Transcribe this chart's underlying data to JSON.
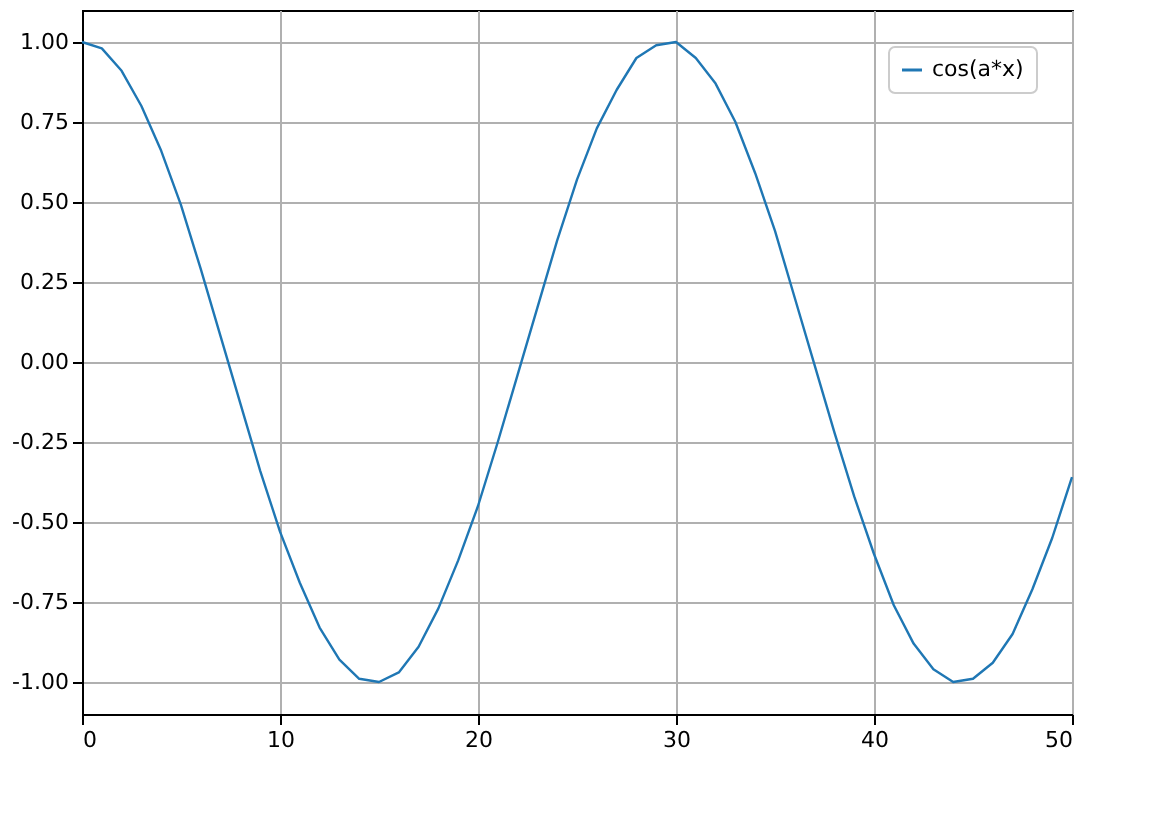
{
  "chart_data": {
    "type": "line",
    "x": [
      0,
      1,
      2,
      3,
      4,
      5,
      6,
      7,
      8,
      9,
      10,
      11,
      12,
      13,
      14,
      15,
      16,
      17,
      18,
      19,
      20,
      21,
      22,
      23,
      24,
      25,
      26,
      27,
      28,
      29,
      30,
      31,
      32,
      33,
      34,
      35,
      36,
      37,
      38,
      39,
      40,
      41,
      42,
      43,
      44,
      45,
      46,
      47,
      48,
      49,
      50
    ],
    "series": [
      {
        "name": "cos(a*x)",
        "color": "#1f77b4",
        "values": [
          1.0,
          0.98,
          0.91,
          0.8,
          0.66,
          0.49,
          0.29,
          0.08,
          -0.13,
          -0.34,
          -0.53,
          -0.69,
          -0.83,
          -0.93,
          -0.99,
          -1.0,
          -0.97,
          -0.89,
          -0.77,
          -0.62,
          -0.45,
          -0.25,
          -0.04,
          0.17,
          0.38,
          0.57,
          0.73,
          0.85,
          0.95,
          0.99,
          1.0,
          0.95,
          0.87,
          0.75,
          0.59,
          0.41,
          0.2,
          -0.01,
          -0.22,
          -0.42,
          -0.6,
          -0.76,
          -0.88,
          -0.96,
          -1.0,
          -0.99,
          -0.94,
          -0.85,
          -0.71,
          -0.55,
          -0.36
        ]
      }
    ],
    "xlim": [
      0,
      50
    ],
    "xticks": [
      0,
      10,
      20,
      30,
      40,
      50
    ],
    "ylim": [
      -1.1,
      1.1
    ],
    "yticks": [
      {
        "value": -1,
        "label": "-1.00"
      },
      {
        "value": -0.75,
        "label": "-0.75"
      },
      {
        "value": -0.5,
        "label": "-0.50"
      },
      {
        "value": -0.25,
        "label": "-0.25"
      },
      {
        "value": 0,
        "label": "0.00"
      },
      {
        "value": 0.25,
        "label": "0.25"
      },
      {
        "value": 0.5,
        "label": "0.50"
      },
      {
        "value": 0.75,
        "label": "0.75"
      },
      {
        "value": 1,
        "label": "1.00"
      }
    ],
    "grid": true,
    "legend": "top right",
    "line_style": "solid",
    "marker": "none"
  }
}
